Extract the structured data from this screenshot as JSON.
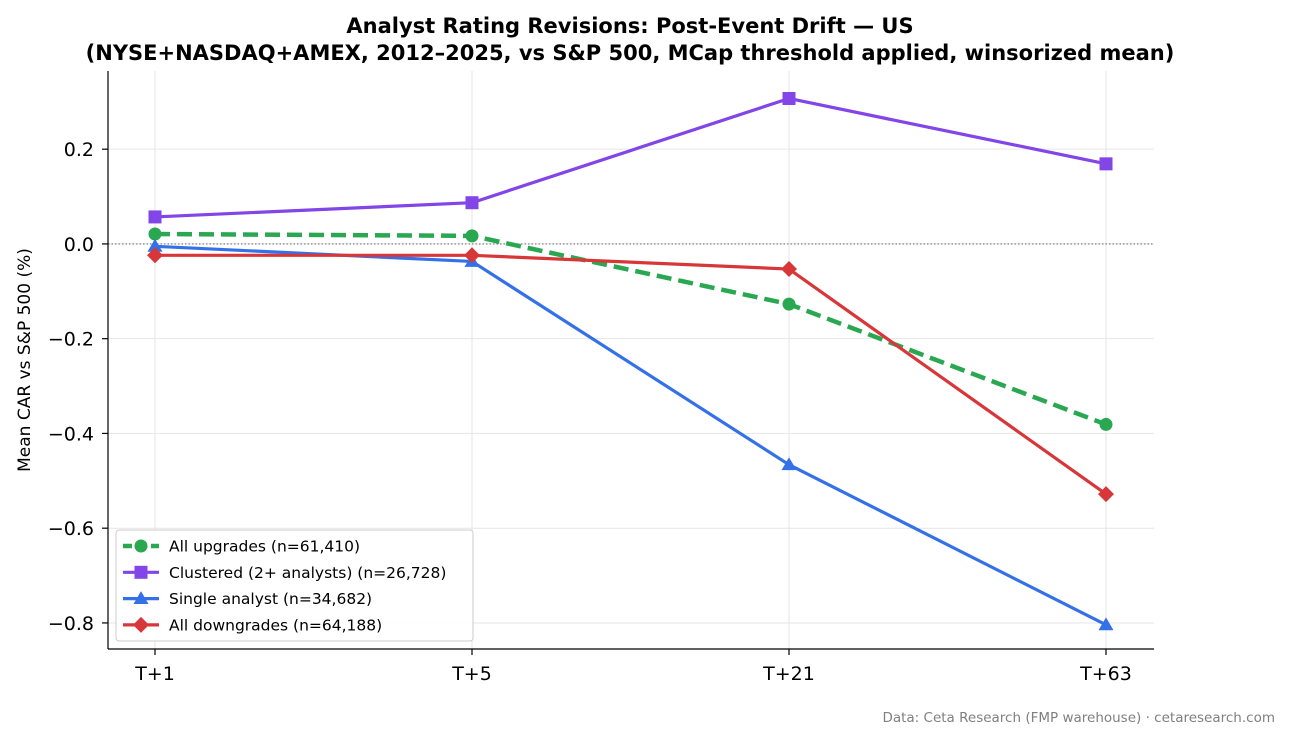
{
  "chart_data": {
    "type": "line",
    "title_lines": [
      "Analyst Rating Revisions: Post-Event Drift — US",
      "(NYSE+NASDAQ+AMEX, 2012–2025, vs S&P 500, MCap threshold applied, winsorized mean)"
    ],
    "xlabel": "",
    "ylabel": "Mean CAR vs S&P 500 (%)",
    "categories": [
      "T+1",
      "T+5",
      "T+21",
      "T+63"
    ],
    "ylim": [
      -0.855,
      0.365
    ],
    "yticks": [
      0.2,
      0.0,
      -0.2,
      -0.4,
      -0.6,
      -0.8
    ],
    "ytick_labels": [
      "0.2",
      "0.0",
      "−0.2",
      "−0.4",
      "−0.6",
      "−0.8"
    ],
    "grid": true,
    "zero_line": true,
    "legend_position": "lower-left",
    "series": [
      {
        "name": "All upgrades (n=61,410)",
        "values": [
          0.021,
          0.017,
          -0.127,
          -0.381
        ],
        "color": "#2aa851",
        "marker": "circle",
        "dashed": true
      },
      {
        "name": "Clustered (2+ analysts) (n=26,728)",
        "values": [
          0.057,
          0.087,
          0.307,
          0.169
        ],
        "color": "#8145e8",
        "marker": "square",
        "dashed": false
      },
      {
        "name": "Single analyst (n=34,682)",
        "values": [
          -0.005,
          -0.037,
          -0.466,
          -0.804
        ],
        "color": "#3471e9",
        "marker": "triangle",
        "dashed": false
      },
      {
        "name": "All downgrades (n=64,188)",
        "values": [
          -0.024,
          -0.024,
          -0.053,
          -0.528
        ],
        "color": "#d8373a",
        "marker": "diamond",
        "dashed": false
      }
    ],
    "credit": "Data: Ceta Research (FMP warehouse) · cetaresearch.com"
  }
}
